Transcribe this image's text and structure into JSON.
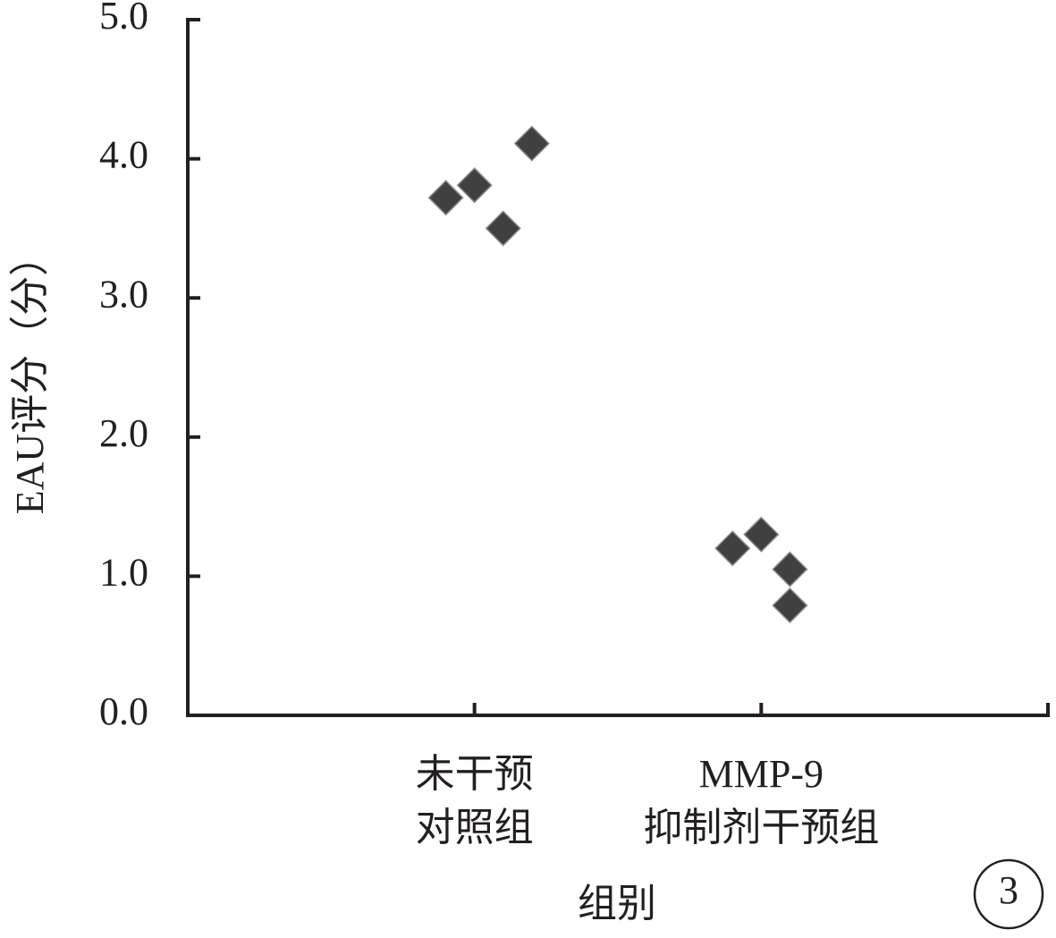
{
  "chart_data": {
    "type": "scatter",
    "y_label": "EAU评分（分）",
    "x_label": "组别",
    "panel_label": "3",
    "xlim": [
      0,
      3
    ],
    "xticks": [
      {
        "value": 1,
        "label": [
          "未干预",
          "对照组"
        ]
      },
      {
        "value": 2,
        "label": [
          "MMP-9",
          "抑制剂干预组"
        ]
      }
    ],
    "ylim": [
      0,
      5
    ],
    "yticks": [
      {
        "value": 0,
        "label": "0.0"
      },
      {
        "value": 1,
        "label": "1.0"
      },
      {
        "value": 2,
        "label": "2.0"
      },
      {
        "value": 3,
        "label": "3.0"
      },
      {
        "value": 4,
        "label": "4.0"
      },
      {
        "value": 5,
        "label": "5.0"
      }
    ],
    "series": [
      {
        "color": "#404040",
        "x": [
          0.9,
          1.0,
          1.1,
          1.2,
          1.9,
          2.0,
          2.1,
          2.1
        ],
        "values": [
          3.72,
          3.81,
          3.5,
          4.11,
          1.2,
          1.3,
          1.05,
          0.79
        ]
      }
    ]
  }
}
